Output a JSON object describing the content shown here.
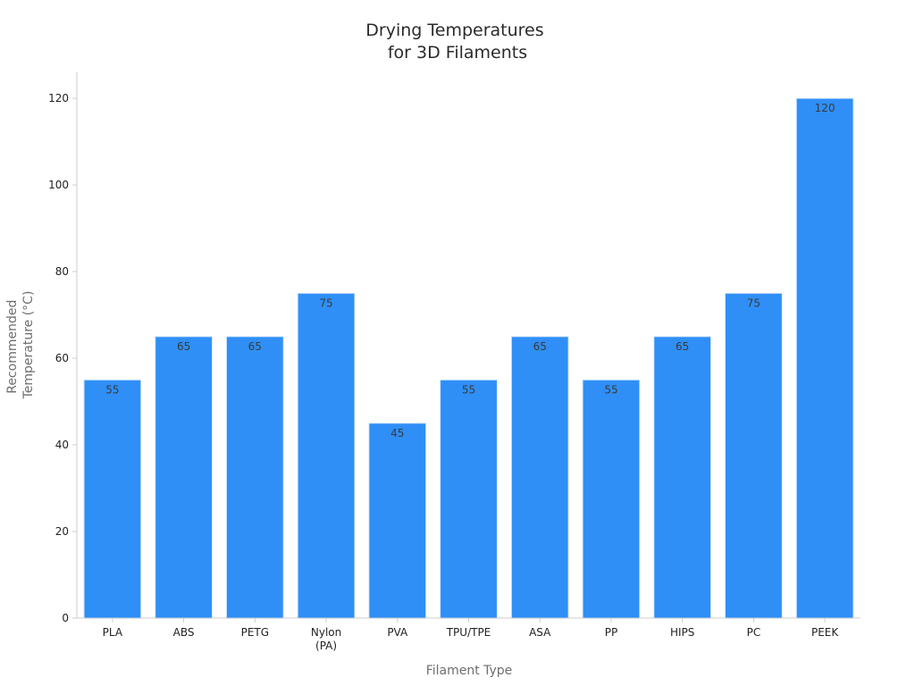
{
  "chart_data": {
    "type": "bar",
    "title": "Drying Temperatures\nfor 3D Filaments",
    "xlabel": "Filament Type",
    "ylabel": "Recommended\nTemperature (°C)",
    "categories": [
      "PLA",
      "ABS",
      "PETG",
      "Nylon\n(PA)",
      "PVA",
      "TPU/TPE",
      "ASA",
      "PP",
      "HIPS",
      "PC",
      "PEEK"
    ],
    "values": [
      55,
      65,
      65,
      75,
      45,
      55,
      65,
      55,
      65,
      75,
      120
    ],
    "ylim": [
      0,
      126
    ],
    "yticks": [
      0,
      20,
      40,
      60,
      80,
      100,
      120
    ],
    "grid": false,
    "legend": "none",
    "bar_color": "#2f8ff7",
    "bar_edge_color": "#d6e8fb",
    "axis_color": "#cccccc"
  }
}
